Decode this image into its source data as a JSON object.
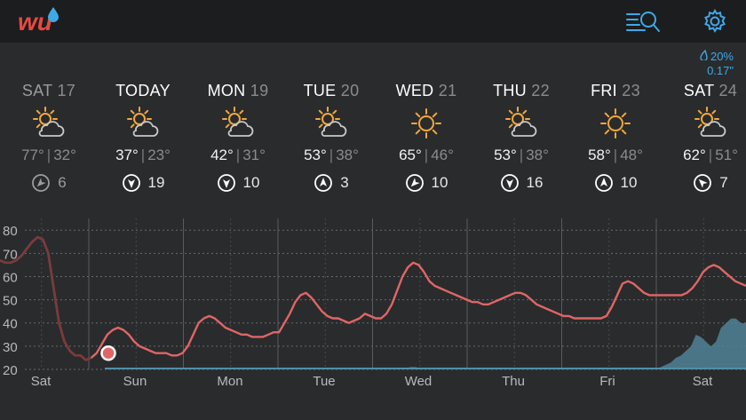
{
  "app": {
    "logo_text": "wu"
  },
  "header": {
    "search_icon": "list-search-icon",
    "settings_icon": "gear-icon"
  },
  "precip": {
    "chance": "20%",
    "amount": "0.17\""
  },
  "days": [
    {
      "name": "SAT",
      "num": "17",
      "icon": "partly-cloudy",
      "hi": "77°",
      "lo": "32°",
      "wind_speed": "6",
      "wind_dir_deg": 225,
      "past": true
    },
    {
      "name": "TODAY",
      "num": "",
      "icon": "partly-cloudy",
      "hi": "37°",
      "lo": "23°",
      "wind_speed": "19",
      "wind_dir_deg": 180,
      "past": false
    },
    {
      "name": "MON",
      "num": "19",
      "icon": "partly-cloudy",
      "hi": "42°",
      "lo": "31°",
      "wind_speed": "10",
      "wind_dir_deg": 180,
      "past": false
    },
    {
      "name": "TUE",
      "num": "20",
      "icon": "partly-cloudy",
      "hi": "53°",
      "lo": "38°",
      "wind_speed": "3",
      "wind_dir_deg": 0,
      "past": false
    },
    {
      "name": "WED",
      "num": "21",
      "icon": "sunny",
      "hi": "65°",
      "lo": "46°",
      "wind_speed": "10",
      "wind_dir_deg": 225,
      "past": false
    },
    {
      "name": "THU",
      "num": "22",
      "icon": "partly-cloudy",
      "hi": "53°",
      "lo": "38°",
      "wind_speed": "16",
      "wind_dir_deg": 180,
      "past": false
    },
    {
      "name": "FRI",
      "num": "23",
      "icon": "sunny",
      "hi": "58°",
      "lo": "48°",
      "wind_speed": "10",
      "wind_dir_deg": 0,
      "past": false
    },
    {
      "name": "SAT",
      "num": "24",
      "icon": "partly-cloudy",
      "hi": "62°",
      "lo": "51°",
      "wind_speed": "7",
      "wind_dir_deg": 315,
      "past": false
    }
  ],
  "chart_data": {
    "type": "line",
    "y_ticks": [
      "80",
      "70",
      "60",
      "50",
      "40",
      "30",
      "20"
    ],
    "ylim": [
      20,
      82
    ],
    "x_labels": [
      "Sat",
      "Sun",
      "Mon",
      "Tue",
      "Wed",
      "Thu",
      "Fri",
      "Sat"
    ],
    "now_marker_value": 27,
    "colors": {
      "temperature": "#e06666",
      "precip": "#4f8296",
      "grid": "#6a6b6e"
    },
    "series": [
      {
        "values": [
          67,
          66,
          66,
          67,
          69,
          72,
          75,
          77,
          76,
          70,
          55,
          40,
          32,
          28,
          26,
          26,
          24,
          25,
          27,
          31,
          35,
          37,
          38,
          37,
          35,
          32,
          30,
          29,
          28,
          27,
          27,
          27,
          26,
          26,
          27,
          30,
          35,
          40,
          42,
          43,
          42,
          40,
          38,
          37,
          36,
          35,
          35,
          34,
          34,
          34,
          35,
          36,
          36,
          40,
          44,
          49,
          52,
          53,
          51,
          48,
          45,
          43,
          42,
          42,
          41,
          40,
          41,
          42,
          44,
          43,
          42,
          42,
          44,
          48,
          54,
          60,
          64,
          66,
          65,
          62,
          58,
          56,
          55,
          54,
          53,
          52,
          51,
          50,
          49,
          49,
          48,
          48,
          49,
          50,
          51,
          52,
          53,
          53,
          52,
          50,
          48,
          47,
          46,
          45,
          44,
          43,
          43,
          42,
          42,
          42,
          42,
          42,
          42,
          43,
          47,
          52,
          57,
          58,
          57,
          55,
          53,
          52,
          52,
          52,
          52,
          52,
          52,
          52,
          53,
          55,
          58,
          62,
          64,
          65,
          64,
          62,
          60,
          58,
          57,
          56
        ]
      }
    ],
    "precip": [
      0,
      0,
      0,
      0,
      0,
      0,
      0,
      0,
      0,
      0,
      0,
      0,
      0,
      0,
      0,
      0,
      0,
      0,
      0,
      0,
      0,
      0,
      0,
      0,
      0,
      0,
      0,
      0,
      0,
      0,
      0,
      0,
      0,
      0,
      0,
      0,
      0,
      0,
      0,
      0,
      0,
      0,
      0,
      0,
      0,
      0,
      0,
      0,
      0,
      0,
      0,
      0,
      0,
      0,
      0,
      0,
      0,
      0,
      0,
      0,
      0,
      0,
      0,
      0,
      0,
      0,
      0,
      0,
      0,
      0,
      0,
      0,
      0,
      0,
      0,
      0,
      0,
      0,
      0,
      0,
      0,
      0.5,
      1,
      1,
      0.5,
      0,
      0,
      0,
      0,
      0,
      0,
      0,
      0,
      0,
      0,
      0,
      0,
      0,
      0,
      0,
      0,
      0,
      0,
      0,
      0,
      0,
      0,
      0,
      0,
      0,
      0,
      0,
      0,
      0,
      0,
      0,
      0,
      0,
      0,
      0,
      0,
      0,
      0,
      0,
      0,
      0,
      0,
      0,
      0,
      0,
      0,
      0,
      1,
      2,
      3,
      5,
      6,
      8,
      10,
      15,
      14,
      12,
      10,
      12,
      18,
      20,
      22,
      22,
      20,
      20
    ]
  }
}
